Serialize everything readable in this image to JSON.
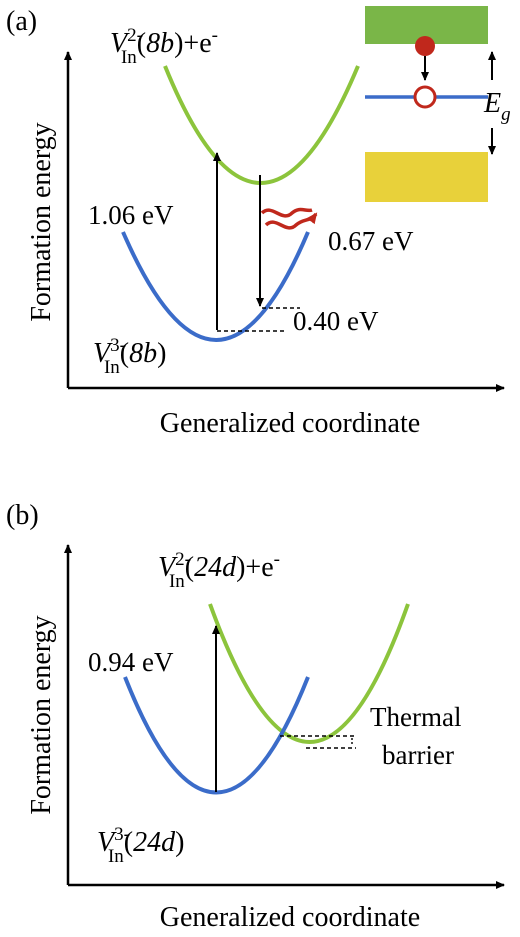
{
  "panel_a": {
    "label": "(a)",
    "y_axis_label": "Formation energy",
    "x_axis_label": "Generalized coordinate",
    "upper_curve": {
      "symbol": "V",
      "sub": "In",
      "sup": "2-",
      "site": "8b",
      "extra": "+e",
      "extra_sup": "-"
    },
    "lower_curve": {
      "symbol": "V",
      "sub": "In",
      "sup": "3-",
      "site": "8b"
    },
    "absorption_energy": "1.06 eV",
    "emission_energy": "0.67 eV",
    "relaxation_energy": "0.40 eV",
    "inset_gap_label": "E",
    "inset_gap_sub": "g"
  },
  "panel_b": {
    "label": "(b)",
    "y_axis_label": "Formation energy",
    "x_axis_label": "Generalized coordinate",
    "upper_curve": {
      "symbol": "V",
      "sub": "In",
      "sup": "2-",
      "site": "24d",
      "extra": "+e",
      "extra_sup": "-"
    },
    "lower_curve": {
      "symbol": "V",
      "sub": "In",
      "sup": "3-",
      "site": "24d"
    },
    "absorption_energy": "0.94 eV",
    "barrier_label_line1": "Thermal",
    "barrier_label_line2": "barrier"
  },
  "colors": {
    "green_curve": "#8cc43c",
    "blue_curve": "#3b6cc9",
    "conduction_band": "#7ab648",
    "valence_band": "#e8d13a",
    "electron": "#c0281c",
    "heat_arrow": "#c0281c"
  }
}
